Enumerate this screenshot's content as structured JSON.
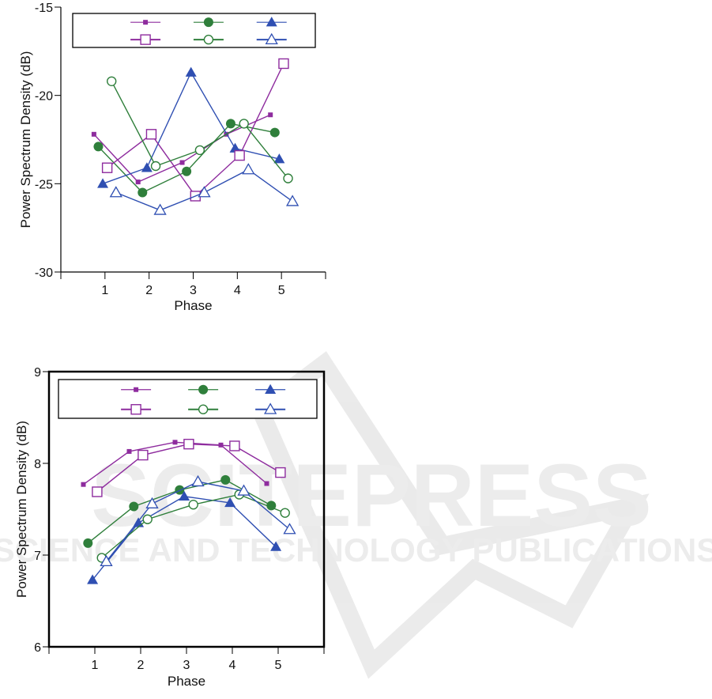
{
  "watermark": {
    "title": "SCITEPRESS",
    "subtitle": "SCIENCE AND TECHNOLOGY PUBLICATIONS"
  },
  "colors": {
    "purple": "#8e2c9e",
    "green": "#2f7f3b",
    "blue": "#2f4fb2"
  },
  "chart_data": [
    {
      "type": "line",
      "title": "",
      "xlabel": "Phase",
      "ylabel": "Power Spectrum Density (dB)",
      "xlim": [
        0,
        6
      ],
      "ylim": [
        -30,
        -15
      ],
      "xticks": [
        "1",
        "2",
        "3",
        "4",
        "5"
      ],
      "yticks": [
        "-30",
        "-25",
        "-20",
        "-15"
      ],
      "grid": false,
      "legend": "top",
      "series": [
        {
          "name": "",
          "marker": "square-filled-small",
          "color": "purple",
          "x": [
            0.75,
            1.75,
            2.75,
            3.75,
            4.75
          ],
          "values": [
            -22.2,
            -24.9,
            -23.8,
            -22.2,
            -21.1
          ]
        },
        {
          "name": "",
          "marker": "circle-filled",
          "color": "green",
          "x": [
            0.85,
            1.85,
            2.85,
            3.85,
            4.85
          ],
          "values": [
            -22.9,
            -25.5,
            -24.3,
            -21.6,
            -22.1
          ]
        },
        {
          "name": "",
          "marker": "triangle-filled",
          "color": "blue",
          "x": [
            0.95,
            1.95,
            2.95,
            3.95,
            4.95
          ],
          "values": [
            -25.0,
            -24.1,
            -18.7,
            -23.0,
            -23.6
          ]
        },
        {
          "name": "",
          "marker": "square-open",
          "color": "purple",
          "x": [
            1.05,
            2.05,
            3.05,
            4.05,
            5.05
          ],
          "values": [
            -24.1,
            -22.2,
            -25.7,
            -23.4,
            -18.2
          ]
        },
        {
          "name": "",
          "marker": "circle-open",
          "color": "green",
          "x": [
            1.15,
            2.15,
            3.15,
            4.15,
            5.15
          ],
          "values": [
            -19.2,
            -24.0,
            -23.1,
            -21.6,
            -24.7
          ]
        },
        {
          "name": "",
          "marker": "triangle-open",
          "color": "blue",
          "x": [
            1.25,
            2.25,
            3.25,
            4.25,
            5.25
          ],
          "values": [
            -25.5,
            -26.5,
            -25.5,
            -24.2,
            -26.0
          ]
        }
      ]
    },
    {
      "type": "line",
      "title": "",
      "xlabel": "Phase",
      "ylabel": "Power Spectrum Density (dB)",
      "xlim": [
        0,
        6
      ],
      "ylim": [
        6,
        9
      ],
      "xticks": [
        "1",
        "2",
        "3",
        "4",
        "5"
      ],
      "yticks": [
        "6",
        "7",
        "8",
        "9"
      ],
      "grid": false,
      "legend": "top",
      "series": [
        {
          "name": "",
          "marker": "square-filled-small",
          "color": "purple",
          "x": [
            0.75,
            1.75,
            2.75,
            3.75,
            4.75
          ],
          "values": [
            7.77,
            8.13,
            8.23,
            8.2,
            7.78
          ]
        },
        {
          "name": "",
          "marker": "circle-filled",
          "color": "green",
          "x": [
            0.85,
            1.85,
            2.85,
            3.85,
            4.85
          ],
          "values": [
            7.13,
            7.53,
            7.71,
            7.82,
            7.54
          ]
        },
        {
          "name": "",
          "marker": "triangle-filled",
          "color": "blue",
          "x": [
            0.95,
            1.95,
            2.95,
            3.95,
            4.95
          ],
          "values": [
            6.73,
            7.35,
            7.64,
            7.57,
            7.09
          ]
        },
        {
          "name": "",
          "marker": "square-open",
          "color": "purple",
          "x": [
            1.05,
            2.05,
            3.05,
            4.05,
            5.05
          ],
          "values": [
            7.69,
            8.09,
            8.21,
            8.19,
            7.9
          ]
        },
        {
          "name": "",
          "marker": "circle-open",
          "color": "green",
          "x": [
            1.15,
            2.15,
            3.15,
            4.15,
            5.15
          ],
          "values": [
            6.97,
            7.39,
            7.55,
            7.66,
            7.46
          ]
        },
        {
          "name": "",
          "marker": "triangle-open",
          "color": "blue",
          "x": [
            1.25,
            2.25,
            3.25,
            4.25,
            5.25
          ],
          "values": [
            6.93,
            7.56,
            7.8,
            7.7,
            7.28
          ]
        }
      ]
    }
  ]
}
